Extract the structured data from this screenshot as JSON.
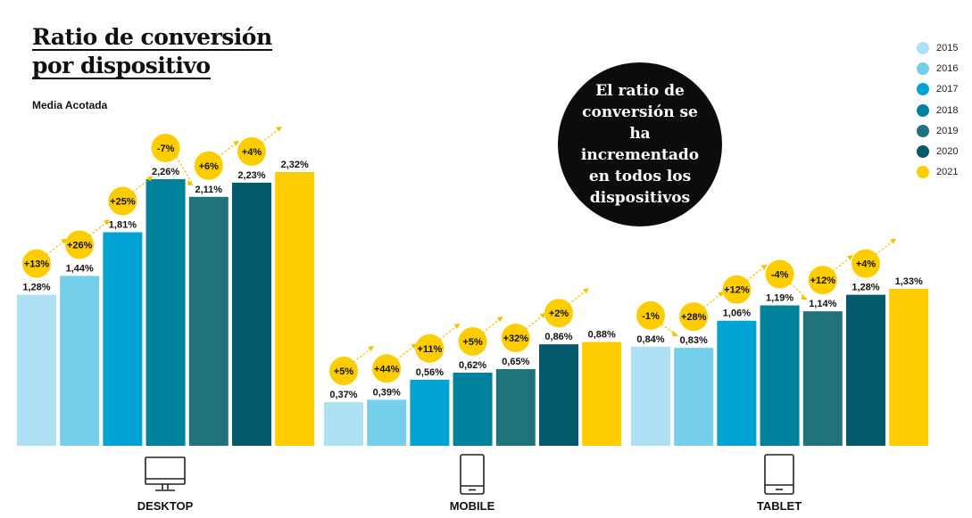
{
  "title_line1": "Ratio de conversión",
  "title_line2": "por dispositivo",
  "subtitle": "Media Acotada",
  "callout": "El ratio de conversión se ha incrementado en todos los dispositivos",
  "legend": [
    {
      "label": "2015",
      "color": "#ade0f2"
    },
    {
      "label": "2016",
      "color": "#74cfea"
    },
    {
      "label": "2017",
      "color": "#00a3d3"
    },
    {
      "label": "2018",
      "color": "#01829c"
    },
    {
      "label": "2019",
      "color": "#20727d"
    },
    {
      "label": "2020",
      "color": "#04596a"
    },
    {
      "label": "2021",
      "color": "#fecd00"
    }
  ],
  "devices": [
    {
      "label": "DESKTOP",
      "icon": "desktop-icon"
    },
    {
      "label": "MOBILE",
      "icon": "mobile-icon"
    },
    {
      "label": "TABLET",
      "icon": "tablet-icon"
    }
  ],
  "chart_data": {
    "type": "bar",
    "categories": [
      "DESKTOP",
      "MOBILE",
      "TABLET"
    ],
    "series": [
      {
        "name": "2015",
        "values": [
          1.28,
          0.37,
          0.84
        ],
        "labels": [
          "1,28%",
          "0,37%",
          "0,84%"
        ]
      },
      {
        "name": "2016",
        "values": [
          1.44,
          0.39,
          0.83
        ],
        "labels": [
          "1,44%",
          "0,39%",
          "0,83%"
        ]
      },
      {
        "name": "2017",
        "values": [
          1.81,
          0.56,
          1.06
        ],
        "labels": [
          "1,81%",
          "0,56%",
          "1,06%"
        ]
      },
      {
        "name": "2018",
        "values": [
          2.26,
          0.62,
          1.19
        ],
        "labels": [
          "2,26%",
          "0,62%",
          "1,19%"
        ]
      },
      {
        "name": "2019",
        "values": [
          2.11,
          0.65,
          1.14
        ],
        "labels": [
          "2,11%",
          "0,65%",
          "1,14%"
        ]
      },
      {
        "name": "2020",
        "values": [
          2.23,
          0.86,
          1.28
        ],
        "labels": [
          "2,23%",
          "0,86%",
          "1,28%"
        ]
      },
      {
        "name": "2021",
        "values": [
          2.32,
          0.88,
          1.33
        ],
        "labels": [
          "2,32%",
          "0,88%",
          "1,33%"
        ]
      }
    ],
    "changes": [
      [
        "+13%",
        "+26%",
        "+25%",
        "-7%",
        "+6%",
        "+4%"
      ],
      [
        "+5%",
        "+44%",
        "+11%",
        "+5%",
        "+32%",
        "+2%"
      ],
      [
        "-1%",
        "+28%",
        "+12%",
        "-4%",
        "+12%",
        "+4%"
      ]
    ],
    "ylim": [
      0,
      2.32
    ],
    "grid": false
  }
}
